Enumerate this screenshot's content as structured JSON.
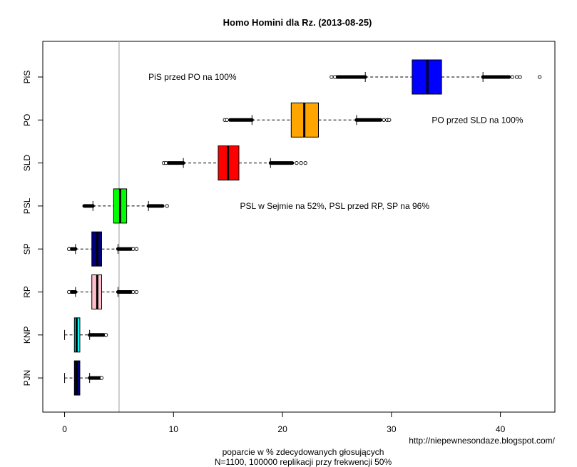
{
  "chart_data": {
    "type": "boxplot",
    "orientation": "horizontal",
    "title": "Homo Homini dla Rz. (2013-08-25)",
    "xlabel_lines": [
      "poparcie w % zdecydowanych głosujących",
      "N=1100, 100000 replikacji przy frekwencji 50%"
    ],
    "source": "http://niepewnesondaze.blogspot.com/",
    "xlim": [
      -2,
      45
    ],
    "xticks": [
      0,
      10,
      20,
      30,
      40
    ],
    "threshold": {
      "value": 5,
      "color": "#b3b3b3"
    },
    "series": [
      {
        "name": "PiS",
        "color": "#0000ff",
        "q1": 31.9,
        "median": 33.3,
        "q3": 34.6,
        "whisker_low": 27.6,
        "whisker_high": 38.4,
        "out_low_dense": [
          25.0,
          27.6
        ],
        "out_high_dense": [
          38.4,
          40.8
        ],
        "out_low_points": [
          24.5,
          24.8
        ],
        "out_high_points": [
          41.1,
          41.5,
          41.8,
          43.6
        ]
      },
      {
        "name": "PO",
        "color": "#ffa500",
        "q1": 20.8,
        "median": 22.0,
        "q3": 23.3,
        "whisker_low": 17.2,
        "whisker_high": 26.8,
        "out_low_dense": [
          15.2,
          17.2
        ],
        "out_high_dense": [
          26.8,
          29.0
        ],
        "out_low_points": [
          14.7,
          14.9
        ],
        "out_high_points": [
          29.3,
          29.6,
          29.8
        ]
      },
      {
        "name": "SLD",
        "color": "#ff0000",
        "q1": 14.1,
        "median": 15.0,
        "q3": 16.0,
        "whisker_low": 10.9,
        "whisker_high": 18.9,
        "out_low_dense": [
          9.5,
          10.9
        ],
        "out_high_dense": [
          18.9,
          20.9
        ],
        "out_low_points": [
          9.1,
          9.3
        ],
        "out_high_points": [
          21.3,
          21.7,
          22.1
        ]
      },
      {
        "name": "PSL",
        "color": "#00ff00",
        "q1": 4.5,
        "median": 5.1,
        "q3": 5.7,
        "whisker_low": 2.6,
        "whisker_high": 7.7,
        "out_low_dense": [
          1.8,
          2.6
        ],
        "out_high_dense": [
          7.7,
          9.0
        ],
        "out_low_points": [],
        "out_high_points": [
          9.4
        ]
      },
      {
        "name": "SP",
        "color": "#000080",
        "q1": 2.5,
        "median": 3.0,
        "q3": 3.4,
        "whisker_low": 1.0,
        "whisker_high": 4.9,
        "out_low_dense": [
          0.6,
          1.0
        ],
        "out_high_dense": [
          4.9,
          6.1
        ],
        "out_low_points": [
          0.4
        ],
        "out_high_points": [
          6.3,
          6.6
        ]
      },
      {
        "name": "RP",
        "color": "#ffc0cb",
        "q1": 2.5,
        "median": 3.0,
        "q3": 3.4,
        "whisker_low": 1.0,
        "whisker_high": 4.9,
        "out_low_dense": [
          0.6,
          1.0
        ],
        "out_high_dense": [
          4.9,
          6.1
        ],
        "out_low_points": [
          0.4
        ],
        "out_high_points": [
          6.3,
          6.6
        ]
      },
      {
        "name": "KNP",
        "color": "#00ffff",
        "q1": 0.9,
        "median": 1.1,
        "q3": 1.4,
        "whisker_low": 0.0,
        "whisker_high": 2.3,
        "out_low_dense": [],
        "out_high_dense": [
          2.3,
          3.6
        ],
        "out_low_points": [],
        "out_high_points": [
          3.8
        ]
      },
      {
        "name": "PJN",
        "color": "#000080",
        "q1": 0.9,
        "median": 1.1,
        "q3": 1.4,
        "whisker_low": 0.0,
        "whisker_high": 2.3,
        "out_low_dense": [],
        "out_high_dense": [
          2.3,
          3.3
        ],
        "out_low_points": [],
        "out_high_points": [
          3.4
        ]
      }
    ],
    "annotations": [
      {
        "text": "PiS przed PO na 100%",
        "x": 7.7,
        "category": "PiS",
        "anchor": "start"
      },
      {
        "text": "PO przed SLD na 100%",
        "x": 33.7,
        "category": "PO",
        "anchor": "start"
      },
      {
        "text": "PSL w Sejmie na 52%, PSL przed RP, SP na 96%",
        "x": 16.1,
        "category": "PSL",
        "anchor": "start"
      }
    ]
  }
}
